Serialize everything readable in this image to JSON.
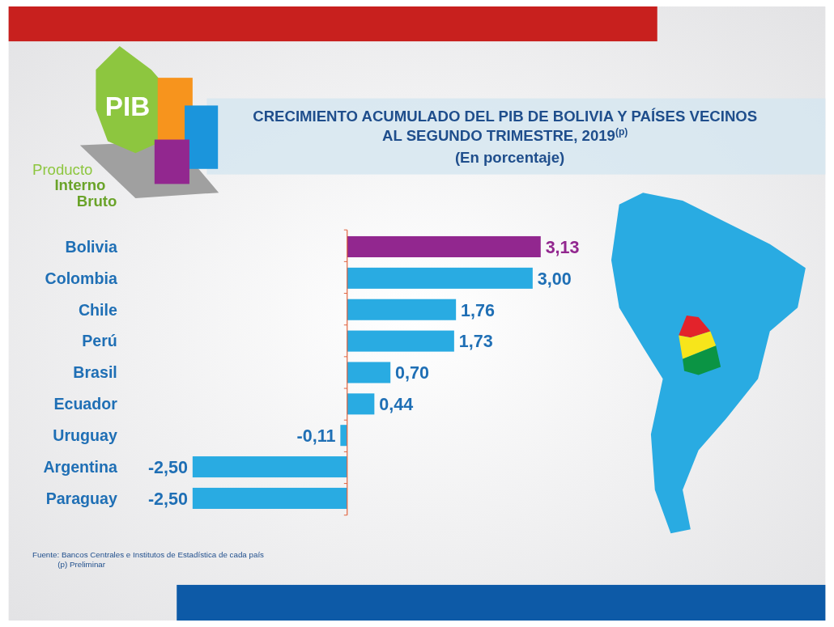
{
  "chart_data": {
    "type": "bar",
    "orientation": "horizontal",
    "title": "CRECIMIENTO ACUMULADO DEL PIB DE BOLIVIA Y PAÍSES VECINOS AL SEGUNDO TRIMESTRE, 2019$^{(p)}$",
    "subtitle": "(En porcentaje)",
    "categories": [
      "Bolivia",
      "Colombia",
      "Chile",
      "Perú",
      "Brasil",
      "Ecuador",
      "Uruguay",
      "Argentina",
      "Paraguay"
    ],
    "values": [
      3.13,
      3.0,
      1.76,
      1.73,
      0.7,
      0.44,
      -0.11,
      -2.5,
      -2.5
    ],
    "value_labels": [
      "3,13",
      "3,00",
      "1,76",
      "1,73",
      "0,70",
      "0,44",
      "-0,11",
      "-2,50",
      "-2,50"
    ],
    "colors": [
      "#92278f",
      "#29abe2",
      "#29abe2",
      "#29abe2",
      "#29abe2",
      "#29abe2",
      "#29abe2",
      "#29abe2",
      "#29abe2"
    ],
    "ref_lines": [
      {
        "axis": "x",
        "value": 0,
        "color": "#e0603a"
      }
    ],
    "annotations": [
      "Fuente: Bancos Centrales e Institutos de Estadística de cada país",
      "(p) Preliminar",
      "PIB",
      "Producto Interno Bruto"
    ]
  }
}
